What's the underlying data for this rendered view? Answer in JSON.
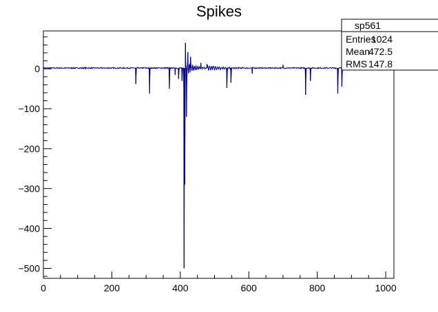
{
  "chart_data": {
    "type": "line",
    "title": "Spikes",
    "xlabel": "",
    "ylabel": "",
    "xlim": [
      0,
      1024
    ],
    "ylim": [
      -525,
      95
    ],
    "x_ticks": [
      0,
      200,
      400,
      600,
      800,
      1000
    ],
    "x_tick_labels": [
      "0",
      "200",
      "400",
      "600",
      "800",
      "1000"
    ],
    "y_ticks": [
      0,
      -100,
      -200,
      -300,
      -400,
      -500
    ],
    "y_tick_labels": [
      "0",
      "−100",
      "−200",
      "−300",
      "−400",
      "−500"
    ],
    "line_color": "#000080",
    "grid": false,
    "legend": "none",
    "baseline": 2,
    "events": [
      {
        "x": 270,
        "y": -38
      },
      {
        "x": 310,
        "y": -62
      },
      {
        "x": 368,
        "y": -50
      },
      {
        "x": 385,
        "y": -15
      },
      {
        "x": 395,
        "y": -25
      },
      {
        "x": 405,
        "y": -30
      },
      {
        "x": 411,
        "y": -500
      },
      {
        "x": 413,
        "y": -290
      },
      {
        "x": 415,
        "y": 65
      },
      {
        "x": 418,
        "y": -120
      },
      {
        "x": 422,
        "y": 42
      },
      {
        "x": 430,
        "y": 30
      },
      {
        "x": 460,
        "y": 15
      },
      {
        "x": 478,
        "y": 12
      },
      {
        "x": 495,
        "y": 5
      },
      {
        "x": 536,
        "y": -48
      },
      {
        "x": 548,
        "y": -35
      },
      {
        "x": 610,
        "y": -12
      },
      {
        "x": 700,
        "y": 10
      },
      {
        "x": 766,
        "y": -65
      },
      {
        "x": 780,
        "y": -30
      },
      {
        "x": 860,
        "y": -62
      },
      {
        "x": 872,
        "y": -45
      }
    ]
  },
  "stats": {
    "name": "sp561",
    "rows": [
      {
        "label": "Entries",
        "value": "1024"
      },
      {
        "label": "Mean",
        "value": "472.5"
      },
      {
        "label": "RMS",
        "value": "147.8"
      }
    ]
  }
}
